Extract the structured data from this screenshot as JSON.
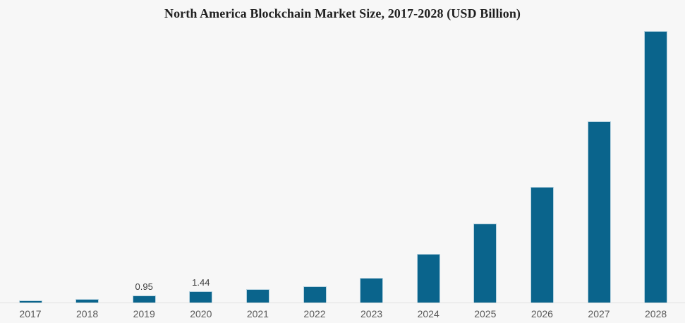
{
  "chart_data": {
    "type": "bar",
    "title": "North America Blockchain Market Size, 2017-2028 (USD Billion)",
    "categories": [
      "2017",
      "2018",
      "2019",
      "2020",
      "2021",
      "2022",
      "2023",
      "2024",
      "2025",
      "2026",
      "2027",
      "2028"
    ],
    "values": [
      0.27,
      0.45,
      0.95,
      1.44,
      1.7,
      2.15,
      3.2,
      6.3,
      10.3,
      15.0,
      23.6,
      35.3
    ],
    "data_labels": [
      "",
      "",
      "0.95",
      "1.44",
      "",
      "",
      "",
      "",
      "",
      "",
      "",
      ""
    ],
    "xlabel": "",
    "ylabel": "",
    "ylim": [
      0,
      36
    ],
    "grid": false,
    "legend": false,
    "y_axis_visible": false,
    "x_axis_line": true
  },
  "colors": {
    "bar_fill": "#0a648c",
    "bar_edge": "#b7d3e0",
    "background": "#f7f7f7",
    "axis_line": "#e0e0e0",
    "tick_label": "#595959",
    "value_label": "#3c3c3c",
    "title": "#1f1f1f"
  }
}
